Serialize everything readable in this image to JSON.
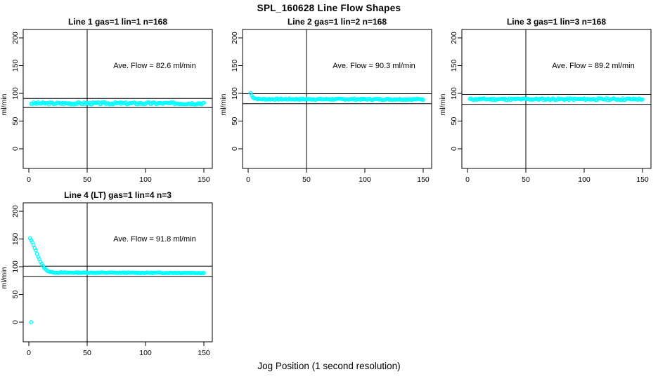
{
  "figure": {
    "title": "SPL_160628  Line Flow Shapes",
    "xlabel": "Jog Position (1 second resolution)",
    "ylabel": "ml/min",
    "background_color": "#ffffff",
    "point_color": "#00ffff",
    "axis_color": "#000000",
    "text_color": "#000000"
  },
  "chart_data": [
    {
      "type": "scatter",
      "title": "Line 1 gas=1 lin=1 n=168",
      "annotation": "Ave. Flow =  82.6  ml/min",
      "ave_flow": 82.6,
      "marker": "open-circle",
      "ylabel": "ml/min",
      "x_ticks": [
        0,
        50,
        100,
        150
      ],
      "y_ticks": [
        0,
        50,
        100,
        150,
        200
      ],
      "xlim": [
        -5,
        157
      ],
      "ylim": [
        -35,
        215
      ],
      "vline_x": 50,
      "hlines": [
        90.9,
        74.3
      ],
      "series": {
        "x_start": 2,
        "x_end": 150,
        "keypoints": [
          [
            2,
            82.0
          ],
          [
            150,
            82.0
          ]
        ],
        "noise": 2.0,
        "extra_points": []
      }
    },
    {
      "type": "scatter",
      "title": "Line 2 gas=1 lin=2 n=168",
      "annotation": "Ave. Flow =  90.3  ml/min",
      "ave_flow": 90.3,
      "marker": "open-circle",
      "ylabel": "ml/min",
      "x_ticks": [
        0,
        50,
        100,
        150
      ],
      "y_ticks": [
        0,
        50,
        100,
        150,
        200
      ],
      "xlim": [
        -5,
        157
      ],
      "ylim": [
        -35,
        215
      ],
      "vline_x": 50,
      "hlines": [
        99.3,
        81.3
      ],
      "series": {
        "x_start": 2,
        "x_end": 150,
        "keypoints": [
          [
            2,
            100.5
          ],
          [
            3,
            96.0
          ],
          [
            4,
            93.5
          ],
          [
            5,
            92.0
          ],
          [
            6,
            91.0
          ],
          [
            7,
            90.3
          ],
          [
            9,
            89.8
          ],
          [
            12,
            89.5
          ],
          [
            150,
            89.3
          ]
        ],
        "noise": 1.2,
        "extra_points": []
      }
    },
    {
      "type": "scatter",
      "title": "Line 3 gas=1 lin=3 n=168",
      "annotation": "Ave. Flow =  89.2  ml/min",
      "ave_flow": 89.2,
      "marker": "open-circle",
      "ylabel": "ml/min",
      "x_ticks": [
        0,
        50,
        100,
        150
      ],
      "y_ticks": [
        0,
        50,
        100,
        150,
        200
      ],
      "xlim": [
        -5,
        157
      ],
      "ylim": [
        -35,
        215
      ],
      "vline_x": 50,
      "hlines": [
        98.1,
        80.3
      ],
      "series": {
        "x_start": 2,
        "x_end": 150,
        "keypoints": [
          [
            2,
            89.5
          ],
          [
            150,
            89.5
          ]
        ],
        "noise": 1.7,
        "extra_points": []
      }
    },
    {
      "type": "scatter",
      "title": "Line 4 (LT) gas=1 lin=4 n=3",
      "annotation": "Ave. Flow =  91.8  ml/min",
      "ave_flow": 91.8,
      "marker": "open-circle",
      "ylabel": "ml/min",
      "x_ticks": [
        0,
        50,
        100,
        150
      ],
      "y_ticks": [
        0,
        50,
        100,
        150,
        200
      ],
      "xlim": [
        -5,
        157
      ],
      "ylim": [
        -35,
        215
      ],
      "vline_x": 50,
      "hlines": [
        101.0,
        82.6
      ],
      "series": {
        "x_start": 1,
        "x_end": 150,
        "keypoints": [
          [
            1,
            151
          ],
          [
            2,
            147.5
          ],
          [
            3,
            143.5
          ],
          [
            4,
            139
          ],
          [
            5,
            134
          ],
          [
            6,
            129
          ],
          [
            7,
            123.5
          ],
          [
            8,
            118.5
          ],
          [
            9,
            113.5
          ],
          [
            10,
            109
          ],
          [
            11,
            105
          ],
          [
            12,
            101.5
          ],
          [
            13,
            98.5
          ],
          [
            14,
            96
          ],
          [
            15,
            94
          ],
          [
            16,
            92.5
          ],
          [
            17,
            91.5
          ],
          [
            18,
            90.8
          ],
          [
            20,
            90
          ],
          [
            24,
            89.3
          ],
          [
            40,
            89.3
          ],
          [
            150,
            88.8
          ]
        ],
        "noise": 0.7,
        "extra_points": [
          [
            2,
            0
          ]
        ]
      }
    }
  ]
}
